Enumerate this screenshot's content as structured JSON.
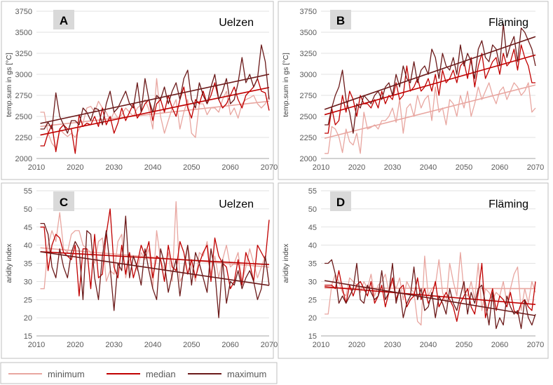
{
  "colors": {
    "minimum": "#e8a6a0",
    "median": "#c00000",
    "maximum": "#6b1a1a",
    "grid": "#d9d9d9",
    "frame": "#bfbfbf",
    "badge": "#d9d9d9"
  },
  "legend": {
    "items": [
      {
        "label": "minimum",
        "key": "minimum"
      },
      {
        "label": "median",
        "key": "median"
      },
      {
        "label": "maximum",
        "key": "maximum"
      }
    ]
  },
  "chart_data": [
    {
      "type": "line",
      "panel": "A",
      "location": "Uelzen",
      "ylabel": "temp.sum in gs [°C]",
      "xlim": [
        2010,
        2070
      ],
      "ylim": [
        2000,
        3750
      ],
      "xticks": [
        2010,
        2020,
        2030,
        2040,
        2050,
        2060,
        2070
      ],
      "yticks": [
        2000,
        2250,
        2500,
        2750,
        3000,
        3250,
        3500,
        3750
      ],
      "x_start": 2011,
      "grid": true,
      "trendlines": true,
      "series": [
        {
          "name": "minimum",
          "values": [
            2550,
            2550,
            2300,
            2180,
            2120,
            2350,
            2300,
            2260,
            2300,
            2250,
            2350,
            2420,
            2600,
            2620,
            2550,
            2680,
            2600,
            2550,
            2450,
            2550,
            2480,
            2520,
            2600,
            2550,
            2500,
            2600,
            2640,
            2700,
            2580,
            2350,
            2950,
            2500,
            2300,
            2450,
            2600,
            2700,
            2350,
            2550,
            2700,
            2300,
            2250,
            2650,
            2650,
            2520,
            2600,
            2600,
            2550,
            2700,
            2800,
            2520,
            2600,
            2480,
            2650,
            2700,
            2720,
            2750,
            2650,
            2600,
            2650,
            2750
          ]
        },
        {
          "name": "median",
          "values": [
            2150,
            2150,
            2300,
            2400,
            2080,
            2350,
            2400,
            2350,
            2350,
            2060,
            2520,
            2380,
            2420,
            2400,
            2500,
            2380,
            2600,
            2400,
            2500,
            2300,
            2420,
            2600,
            2450,
            2550,
            2650,
            2480,
            2550,
            2650,
            2700,
            2450,
            2650,
            2700,
            2550,
            2750,
            2600,
            2500,
            2700,
            2850,
            2600,
            2480,
            2700,
            2650,
            2800,
            2650,
            2750,
            2900,
            2700,
            2600,
            2650,
            2750,
            2850,
            2700,
            2600,
            2750,
            2800,
            2850,
            2950,
            2800,
            2780,
            2570
          ]
        },
        {
          "name": "maximum",
          "values": [
            2350,
            2350,
            2430,
            2350,
            2780,
            2500,
            2400,
            2300,
            2450,
            2450,
            2400,
            2600,
            2550,
            2450,
            2600,
            2580,
            2400,
            2650,
            2800,
            2550,
            2600,
            2700,
            2800,
            2650,
            2600,
            2900,
            2550,
            2950,
            2700,
            2550,
            2750,
            2700,
            2850,
            2650,
            2800,
            2900,
            2700,
            2950,
            3050,
            2700,
            2600,
            2900,
            2750,
            2650,
            2850,
            3000,
            2700,
            2800,
            2950,
            2650,
            2700,
            2900,
            3200,
            2900,
            3000,
            2850,
            2950,
            3350,
            3150,
            2700
          ]
        }
      ]
    },
    {
      "type": "line",
      "panel": "B",
      "location": "Fläming",
      "ylabel": "temp.sum in gs [°C]",
      "xlim": [
        2010,
        2070
      ],
      "ylim": [
        2000,
        3750
      ],
      "xticks": [
        2010,
        2020,
        2030,
        2040,
        2050,
        2060,
        2070
      ],
      "yticks": [
        2000,
        2250,
        2500,
        2750,
        3000,
        3250,
        3500,
        3750
      ],
      "x_start": 2011,
      "grid": true,
      "trendlines": true,
      "series": [
        {
          "name": "minimum",
          "values": [
            2060,
            2060,
            2380,
            2350,
            2260,
            2070,
            2350,
            2200,
            2160,
            2300,
            2060,
            2550,
            2350,
            2370,
            2400,
            2350,
            2450,
            2450,
            2500,
            2600,
            2430,
            2700,
            2300,
            2600,
            2650,
            2500,
            2750,
            2600,
            2700,
            2750,
            2450,
            2850,
            2550,
            2600,
            2400,
            2700,
            2650,
            2500,
            2750,
            2600,
            2800,
            2500,
            2650,
            2850,
            2700,
            2800,
            2900,
            2750,
            2650,
            2800,
            2850,
            2700,
            2800,
            2900,
            2850,
            2750,
            2800,
            2900,
            2550,
            2600
          ]
        },
        {
          "name": "median",
          "values": [
            2300,
            2300,
            2600,
            2400,
            2450,
            2750,
            2550,
            2800,
            2700,
            2500,
            2750,
            2650,
            2650,
            2600,
            2700,
            2600,
            2800,
            2650,
            2750,
            2700,
            2900,
            2700,
            2750,
            3100,
            2800,
            2850,
            2950,
            2800,
            2850,
            2950,
            2800,
            3000,
            2750,
            3050,
            2900,
            2950,
            3050,
            2900,
            3100,
            3150,
            2950,
            3200,
            2850,
            3100,
            3250,
            2950,
            3050,
            3150,
            3200,
            3000,
            3250,
            3100,
            3150,
            3300,
            3050,
            3350,
            3200,
            3100,
            2900,
            2900
          ]
        },
        {
          "name": "maximum",
          "values": [
            2400,
            2400,
            2600,
            2750,
            2850,
            3050,
            2700,
            2550,
            2300,
            2650,
            2600,
            2750,
            2700,
            2650,
            2750,
            2800,
            2700,
            2850,
            2900,
            2750,
            3000,
            2850,
            3100,
            2950,
            2900,
            3150,
            2900,
            3050,
            3100,
            3000,
            3300,
            3200,
            2950,
            3250,
            3100,
            3050,
            3200,
            3000,
            3350,
            3100,
            3250,
            3150,
            2950,
            3300,
            3400,
            3200,
            3150,
            3350,
            3300,
            3100,
            3600,
            3200,
            3350,
            3450,
            3150,
            3550,
            3500,
            3400,
            3300,
            3100
          ]
        }
      ]
    },
    {
      "type": "line",
      "panel": "C",
      "location": "Uelzen",
      "ylabel": "aridity index",
      "xlim": [
        2010,
        2070
      ],
      "ylim": [
        15,
        55
      ],
      "xticks": [
        2010,
        2020,
        2030,
        2040,
        2050,
        2060,
        2070
      ],
      "yticks": [
        15,
        20,
        25,
        30,
        35,
        40,
        45,
        50,
        55
      ],
      "x_start": 2011,
      "grid": true,
      "trendlines": true,
      "series": [
        {
          "name": "minimum",
          "values": [
            28,
            28,
            40,
            44,
            41,
            49,
            39,
            38,
            43,
            44,
            44,
            40,
            39,
            38,
            35,
            41,
            42,
            30,
            33,
            32,
            41,
            43,
            31,
            36,
            37,
            33,
            38,
            36,
            39,
            28,
            44,
            36,
            33,
            38,
            30,
            52,
            30,
            32,
            40,
            34,
            30,
            38,
            37,
            41,
            32,
            37,
            31,
            36,
            40,
            34,
            35,
            38,
            30,
            34,
            39,
            35,
            31,
            34,
            37,
            29
          ]
        },
        {
          "name": "median",
          "values": [
            45,
            45,
            33,
            40,
            43,
            42,
            38,
            37,
            36,
            40,
            26,
            39,
            39,
            28,
            43,
            31,
            32,
            43,
            50,
            34,
            31,
            40,
            32,
            38,
            31,
            35,
            40,
            37,
            41,
            31,
            37,
            36,
            30,
            40,
            34,
            33,
            41,
            38,
            32,
            36,
            31,
            35,
            38,
            40,
            30,
            42,
            37,
            35,
            34,
            28,
            30,
            36,
            29,
            38,
            35,
            30,
            40,
            38,
            36,
            47
          ]
        },
        {
          "name": "maximum",
          "values": [
            46,
            46,
            43,
            34,
            31,
            39,
            34,
            31,
            38,
            41,
            39,
            25,
            44,
            43,
            31,
            25,
            37,
            44,
            34,
            22,
            35,
            33,
            48,
            31,
            37,
            34,
            29,
            39,
            33,
            28,
            25,
            39,
            35,
            27,
            32,
            36,
            26,
            34,
            40,
            29,
            38,
            35,
            31,
            27,
            39,
            33,
            20,
            36,
            24,
            30,
            29,
            33,
            28,
            31,
            33,
            30,
            25,
            28,
            37,
            29
          ]
        }
      ]
    },
    {
      "type": "line",
      "panel": "D",
      "location": "Fläming",
      "ylabel": "aridity index",
      "xlim": [
        2010,
        2070
      ],
      "ylim": [
        15,
        55
      ],
      "xticks": [
        2010,
        2020,
        2030,
        2040,
        2050,
        2060,
        2070
      ],
      "yticks": [
        15,
        20,
        25,
        30,
        35,
        40,
        45,
        50,
        55
      ],
      "x_start": 2011,
      "grid": true,
      "trendlines": true,
      "series": [
        {
          "name": "minimum",
          "values": [
            21,
            21,
            29,
            32,
            30,
            27,
            26,
            31,
            30,
            29,
            27,
            30,
            28,
            32,
            26,
            29,
            30,
            32,
            27,
            30,
            28,
            31,
            25,
            30,
            28,
            27,
            19,
            18,
            37,
            26,
            28,
            29,
            36,
            27,
            24,
            35,
            30,
            26,
            38,
            27,
            26,
            30,
            25,
            35,
            22,
            28,
            27,
            25,
            27,
            26,
            30,
            24,
            28,
            32,
            34,
            22,
            28,
            24,
            30,
            27
          ]
        },
        {
          "name": "median",
          "values": [
            29,
            29,
            29,
            28,
            33,
            28,
            24,
            29,
            26,
            29,
            30,
            28,
            26,
            30,
            24,
            26,
            29,
            23,
            27,
            31,
            25,
            28,
            29,
            23,
            25,
            26,
            31,
            25,
            28,
            24,
            26,
            30,
            23,
            25,
            27,
            25,
            23,
            19,
            24,
            26,
            28,
            23,
            21,
            27,
            35,
            20,
            24,
            28,
            22,
            26,
            25,
            23,
            27,
            22,
            21,
            24,
            25,
            23,
            22,
            30
          ]
        },
        {
          "name": "maximum",
          "values": [
            35,
            35,
            36,
            32,
            24,
            26,
            24,
            26,
            28,
            35,
            25,
            24,
            29,
            27,
            25,
            26,
            33,
            25,
            27,
            35,
            24,
            28,
            20,
            24,
            26,
            34,
            25,
            28,
            22,
            23,
            27,
            20,
            26,
            24,
            21,
            28,
            24,
            22,
            26,
            30,
            21,
            27,
            24,
            28,
            29,
            24,
            18,
            27,
            17,
            20,
            18,
            26,
            23,
            21,
            22,
            17,
            25,
            20,
            18,
            21
          ]
        }
      ]
    }
  ]
}
